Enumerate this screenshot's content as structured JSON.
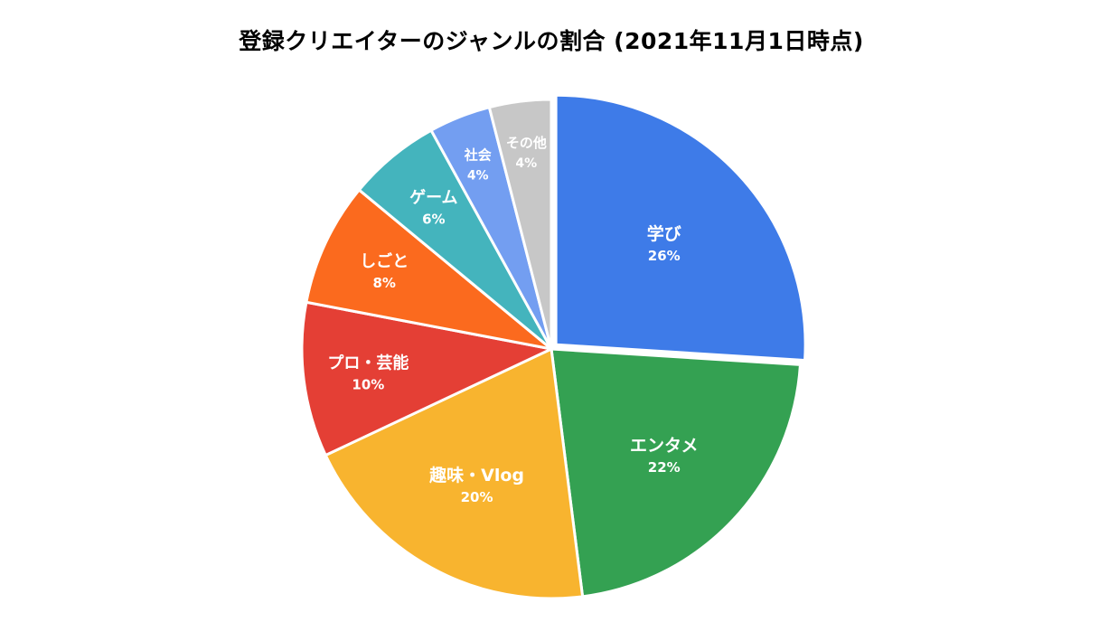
{
  "chart_data": {
    "type": "pie",
    "title": "登録クリエイターのジャンルの割合 (2021年11月1日時点)",
    "start_angle_deg": 0,
    "direction": "clockwise",
    "slices": [
      {
        "label": "学び",
        "value": 26,
        "display": "26%",
        "color": "#3e7be8",
        "explode": true
      },
      {
        "label": "エンタメ",
        "value": 22,
        "display": "22%",
        "color": "#34a152",
        "explode": false
      },
      {
        "label": "趣味・Vlog",
        "value": 20,
        "display": "20%",
        "color": "#f8b42f",
        "explode": false
      },
      {
        "label": "プロ・芸能",
        "value": 10,
        "display": "10%",
        "color": "#e43f35",
        "explode": false
      },
      {
        "label": "しごと",
        "value": 8,
        "display": "8%",
        "color": "#fb6a1e",
        "explode": false
      },
      {
        "label": "ゲーム",
        "value": 6,
        "display": "6%",
        "color": "#44b4bd",
        "explode": false
      },
      {
        "label": "社会",
        "value": 4,
        "display": "4%",
        "color": "#739ef1",
        "explode": false
      },
      {
        "label": "その他",
        "value": 4,
        "display": "4%",
        "color": "#c7c7c7",
        "explode": false
      }
    ]
  }
}
